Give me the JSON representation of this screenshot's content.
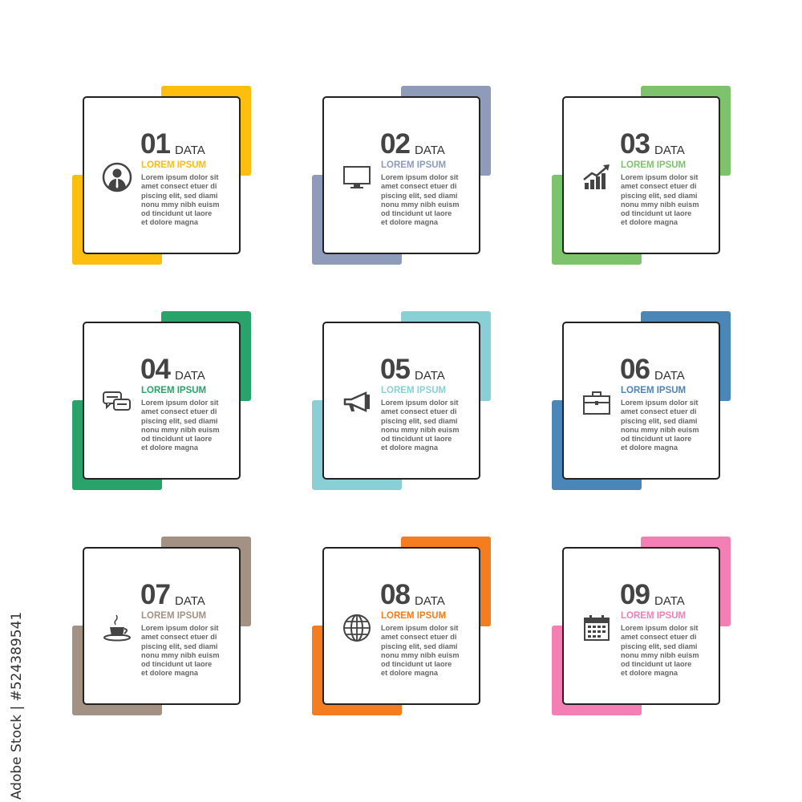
{
  "cards": [
    {
      "number": "01",
      "suffix": "DATA",
      "title": "LOREM IPSUM",
      "color": "#FDBE10",
      "icon": "businessman-icon"
    },
    {
      "number": "02",
      "suffix": "DATA",
      "title": "LOREM IPSUM",
      "color": "#8E9BBA",
      "icon": "monitor-icon"
    },
    {
      "number": "03",
      "suffix": "DATA",
      "title": "LOREM IPSUM",
      "color": "#7DC36B",
      "icon": "growth-chart-icon"
    },
    {
      "number": "04",
      "suffix": "DATA",
      "title": "LOREM IPSUM",
      "color": "#2AA36B",
      "icon": "chat-bubbles-icon"
    },
    {
      "number": "05",
      "suffix": "DATA",
      "title": "LOREM IPSUM",
      "color": "#88D0D5",
      "icon": "megaphone-icon"
    },
    {
      "number": "06",
      "suffix": "DATA",
      "title": "LOREM IPSUM",
      "color": "#4A86B8",
      "icon": "briefcase-icon"
    },
    {
      "number": "07",
      "suffix": "DATA",
      "title": "LOREM IPSUM",
      "color": "#A39184",
      "icon": "coffee-cup-icon"
    },
    {
      "number": "08",
      "suffix": "DATA",
      "title": "LOREM IPSUM",
      "color": "#F57D20",
      "icon": "globe-icon"
    },
    {
      "number": "09",
      "suffix": "DATA",
      "title": "LOREM IPSUM",
      "color": "#F47FB5",
      "icon": "calendar-icon"
    }
  ],
  "body_lines": [
    "Lorem ipsum dolor sit",
    "amet consect etuer di",
    "piscing elit, sed diami",
    "nonu mmy nibh euism",
    "od tincidunt ut laore",
    "et dolore magna"
  ],
  "watermark": "Adobe Stock | #524389541"
}
